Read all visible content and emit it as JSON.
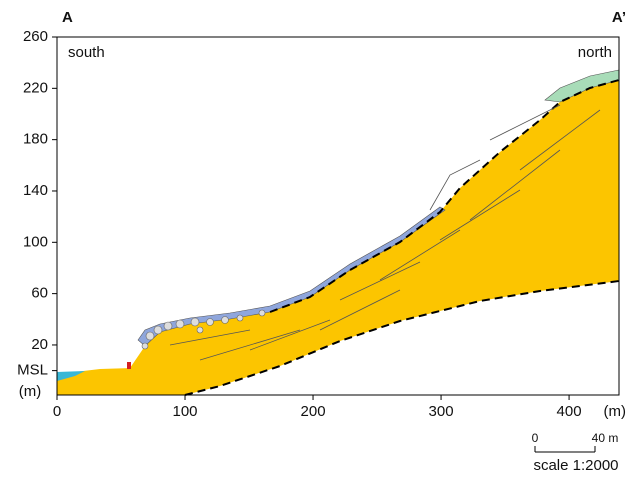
{
  "chart_data": {
    "type": "cross-section",
    "xlabel": "(m)",
    "ylabel": "(m)",
    "xlim": [
      0,
      439
    ],
    "ylim": [
      -19,
      260
    ],
    "xticks": [
      0,
      100,
      200,
      300,
      400
    ],
    "yticks": [
      {
        "value": 0,
        "label": "MSL"
      },
      20,
      60,
      100,
      140,
      180,
      220,
      260
    ],
    "annotations": {
      "left_end": "A",
      "right_end": "A’",
      "left_side": "south",
      "right_side": "north",
      "scale_zero": "0",
      "scale_length": "40 m",
      "scale_ratio": "scale 1:2000"
    }
  }
}
